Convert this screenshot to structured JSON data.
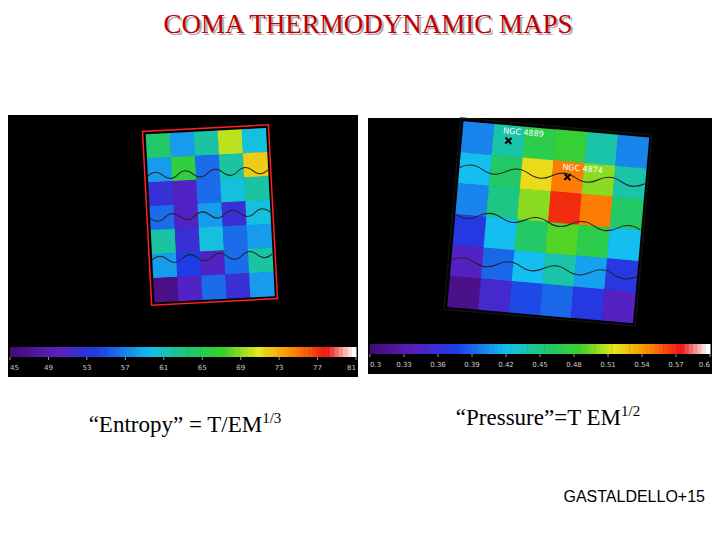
{
  "title": "COMA THERMODYNAMIC MAPS",
  "credit": "GASTALDELLO+15",
  "chart_data": [
    {
      "type": "heatmap",
      "caption": "“Entropy” = T/EM",
      "caption_superscript": "1/3",
      "tick_labels": false,
      "cells": [
        [
          64,
          58,
          62,
          70,
          60
        ],
        [
          58,
          66,
          56,
          62,
          72
        ],
        [
          52,
          50,
          56,
          60,
          62
        ],
        [
          56,
          50,
          58,
          52,
          60
        ],
        [
          62,
          52,
          60,
          56,
          58
        ],
        [
          58,
          54,
          50,
          56,
          62
        ],
        [
          46,
          50,
          56,
          52,
          58
        ]
      ],
      "colorbar": {
        "range": [
          45,
          81
        ],
        "ticks": [
          45,
          49,
          53,
          57,
          61,
          65,
          69,
          73,
          77,
          81
        ]
      }
    },
    {
      "type": "heatmap",
      "caption": "“Pressure”=T EM",
      "caption_superscript": "1/2",
      "tick_labels": false,
      "annotations": [
        "NGC 4889",
        "NGC 4874"
      ],
      "cells": [
        [
          0.4,
          0.44,
          0.47,
          0.48,
          0.44,
          0.4
        ],
        [
          0.42,
          0.46,
          0.52,
          0.55,
          0.5,
          0.44
        ],
        [
          0.4,
          0.45,
          0.5,
          0.57,
          0.55,
          0.46
        ],
        [
          0.37,
          0.42,
          0.46,
          0.49,
          0.47,
          0.42
        ],
        [
          0.34,
          0.39,
          0.42,
          0.44,
          0.41,
          0.37
        ],
        [
          0.31,
          0.35,
          0.38,
          0.39,
          0.37,
          0.34
        ]
      ],
      "colorbar": {
        "range": [
          0.3,
          0.6
        ],
        "ticks": [
          0.3,
          0.33,
          0.36,
          0.39,
          0.42,
          0.45,
          0.48,
          0.51,
          0.54,
          0.57,
          0.6
        ]
      }
    }
  ]
}
